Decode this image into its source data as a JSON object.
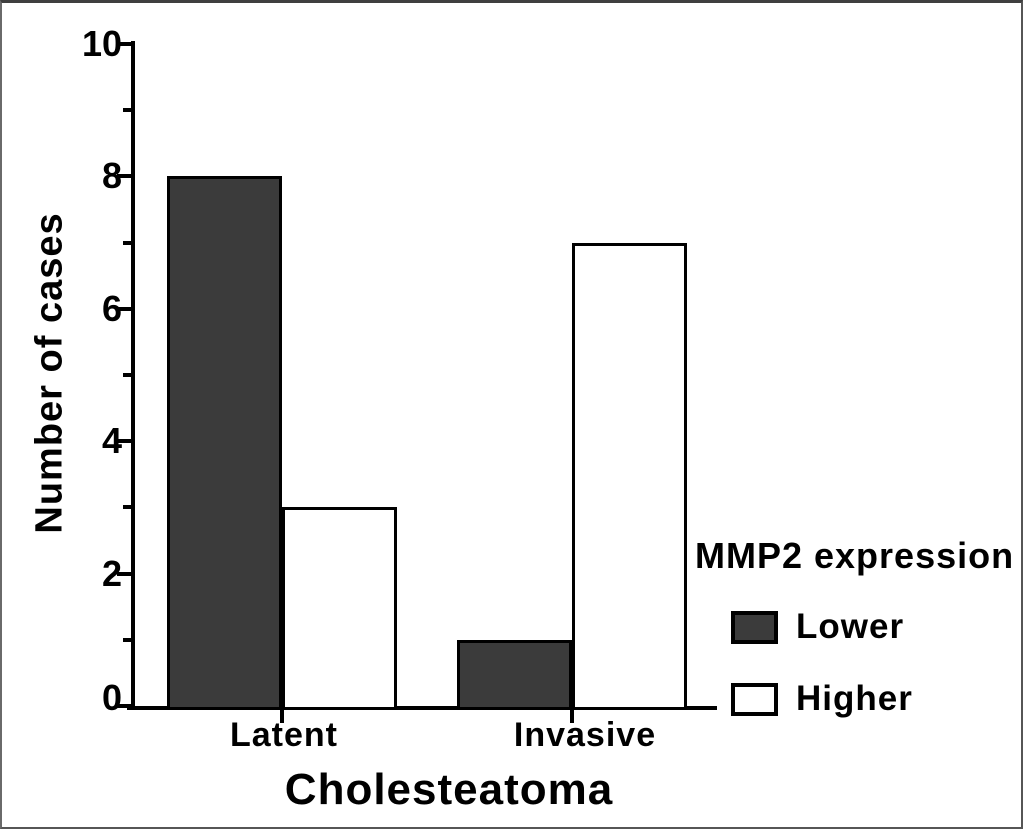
{
  "chart_data": {
    "type": "bar",
    "title": "",
    "xlabel": "Cholesteatoma",
    "ylabel": "Number of cases",
    "categories": [
      "Latent",
      "Invasive"
    ],
    "series": [
      {
        "name": "Lower",
        "values": [
          8,
          1
        ],
        "fill": "#3b3b3b",
        "stroke": "#000000"
      },
      {
        "name": "Higher",
        "values": [
          3,
          7
        ],
        "fill": "#ffffff",
        "stroke": "#000000"
      }
    ],
    "ylim": [
      0,
      10
    ],
    "y_major_ticks": [
      0,
      2,
      4,
      6,
      8,
      10
    ],
    "y_minor_ticks": [
      1,
      3,
      5,
      7,
      9
    ],
    "grid": false,
    "bar_orientation": "vertical",
    "legend": {
      "title": "MMP2 expression",
      "position": "right-bottom",
      "entries": [
        {
          "label": "Lower",
          "swatch_fill": "#3b3b3b"
        },
        {
          "label": "Higher",
          "swatch_fill": "#ffffff"
        }
      ]
    }
  },
  "colors": {
    "background": "#ffffff",
    "axis": "#000000",
    "text": "#000000",
    "frame_border": "#565656"
  }
}
